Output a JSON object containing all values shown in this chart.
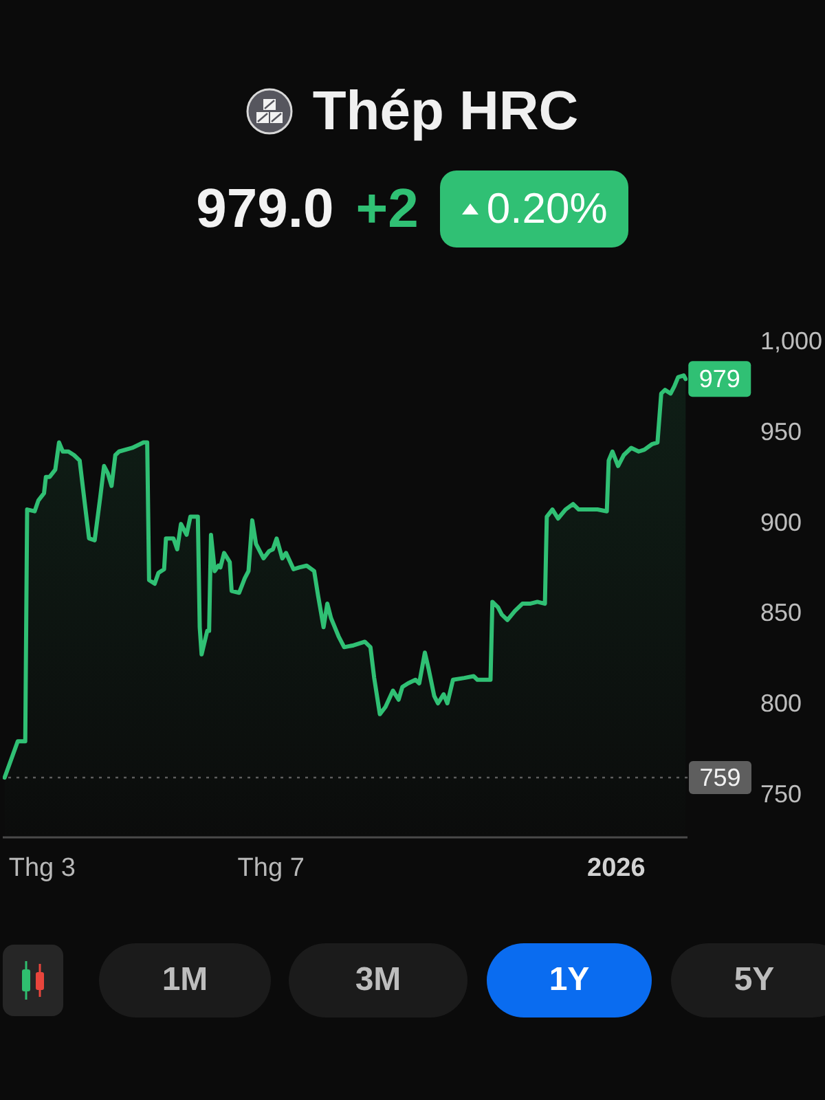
{
  "chart_data": {
    "type": "area",
    "title": "Thép HRC",
    "color": "#30c074",
    "annotations": [
      "979.0",
      "+2",
      "0.20%",
      {
        "text": "979",
        "x": "2026-02-07",
        "y": 979
      },
      "1M",
      "3M",
      "1Y",
      "5Y"
    ],
    "x": [
      "2025-02-09",
      "2025-02-16",
      "2025-02-20",
      "2025-02-21",
      "2025-02-25",
      "2025-02-27",
      "2025-03-02",
      "2025-03-03",
      "2025-03-05",
      "2025-03-08",
      "2025-03-10",
      "2025-03-12",
      "2025-03-15",
      "2025-03-18",
      "2025-03-21",
      "2025-03-24",
      "2025-03-26",
      "2025-03-29",
      "2025-04-01",
      "2025-04-03",
      "2025-04-05",
      "2025-04-07",
      "2025-04-09",
      "2025-04-11",
      "2025-04-18",
      "2025-04-22",
      "2025-04-24",
      "2025-04-26",
      "2025-04-27",
      "2025-04-30",
      "2025-05-02",
      "2025-05-05",
      "2025-05-06",
      "2025-05-10",
      "2025-05-12",
      "2025-05-14",
      "2025-05-17",
      "2025-05-19",
      "2025-05-23",
      "2025-05-24",
      "2025-05-25",
      "2025-05-28",
      "2025-05-29",
      "2025-05-30",
      "2025-06-01",
      "2025-06-03",
      "2025-06-04",
      "2025-06-06",
      "2025-06-09",
      "2025-06-10",
      "2025-06-14",
      "2025-06-17",
      "2025-06-19",
      "2025-06-21",
      "2025-06-23",
      "2025-06-27",
      "2025-06-30",
      "2025-07-02",
      "2025-07-04",
      "2025-07-07",
      "2025-07-09",
      "2025-07-13",
      "2025-07-16",
      "2025-07-20",
      "2025-07-24",
      "2025-07-26",
      "2025-07-29",
      "2025-07-31",
      "2025-08-02",
      "2025-08-06",
      "2025-08-09",
      "2025-08-14",
      "2025-08-20",
      "2025-08-23",
      "2025-08-25",
      "2025-08-28",
      "2025-08-31",
      "2025-09-04",
      "2025-09-07",
      "2025-09-09",
      "2025-09-12",
      "2025-09-16",
      "2025-09-18",
      "2025-09-21",
      "2025-09-23",
      "2025-09-26",
      "2025-09-28",
      "2025-10-01",
      "2025-10-03",
      "2025-10-06",
      "2025-10-12",
      "2025-10-17",
      "2025-10-19",
      "2025-10-26",
      "2025-10-27",
      "2025-10-30",
      "2025-11-01",
      "2025-11-04",
      "2025-11-08",
      "2025-11-12",
      "2025-11-16",
      "2025-11-20",
      "2025-11-24",
      "2025-11-25",
      "2025-11-28",
      "2025-12-01",
      "2025-12-05",
      "2025-12-09",
      "2025-12-12",
      "2025-12-22",
      "2025-12-27",
      "2025-12-28",
      "2025-12-30",
      "2026-01-02",
      "2026-01-05",
      "2026-01-09",
      "2026-01-13",
      "2026-01-16",
      "2026-01-20",
      "2026-01-23",
      "2026-01-25",
      "2026-01-27",
      "2026-01-30",
      "2026-02-01",
      "2026-02-03",
      "2026-02-06",
      "2026-02-07"
    ],
    "values": [
      759,
      779,
      779,
      907,
      906,
      912,
      916,
      925,
      925,
      929,
      944,
      939,
      939,
      937,
      934,
      908,
      891,
      890,
      914,
      931,
      927,
      920,
      937,
      939,
      941,
      943,
      944,
      944,
      868,
      866,
      872,
      874,
      891,
      891,
      885,
      899,
      893,
      903,
      903,
      842,
      827,
      840,
      840,
      893,
      873,
      876,
      875,
      883,
      878,
      862,
      861,
      869,
      873,
      901,
      888,
      880,
      884,
      885,
      891,
      880,
      883,
      874,
      875,
      876,
      873,
      860,
      842,
      855,
      847,
      837,
      831,
      832,
      834,
      831,
      814,
      794,
      798,
      807,
      802,
      809,
      811,
      813,
      811,
      828,
      819,
      804,
      800,
      805,
      800,
      813,
      814,
      815,
      813,
      813,
      856,
      853,
      849,
      846,
      851,
      855,
      855,
      856,
      855,
      903,
      907,
      902,
      907,
      910,
      907,
      907,
      906,
      934,
      939,
      931,
      937,
      941,
      939,
      940,
      943,
      944,
      971,
      973,
      971,
      975,
      980,
      981,
      979
    ],
    "xlim": [
      "2025-02-08",
      "2026-02-08"
    ],
    "xticks": [
      {
        "value": "2025-03-01",
        "label": "Thg 3"
      },
      {
        "value": "2025-07-01",
        "label": "Thg 7"
      },
      {
        "value": "2026-01-01",
        "label": "2026"
      }
    ],
    "ylim": [
      726,
      1000
    ],
    "yticks": [
      750,
      800,
      850,
      900,
      950,
      {
        "value": 1000,
        "label": "1,000"
      }
    ],
    "ref_lines": [
      {
        "axis": "y",
        "value": 759,
        "label": "759",
        "color": "#5e5e5e",
        "line_style": "dotted"
      }
    ]
  }
}
